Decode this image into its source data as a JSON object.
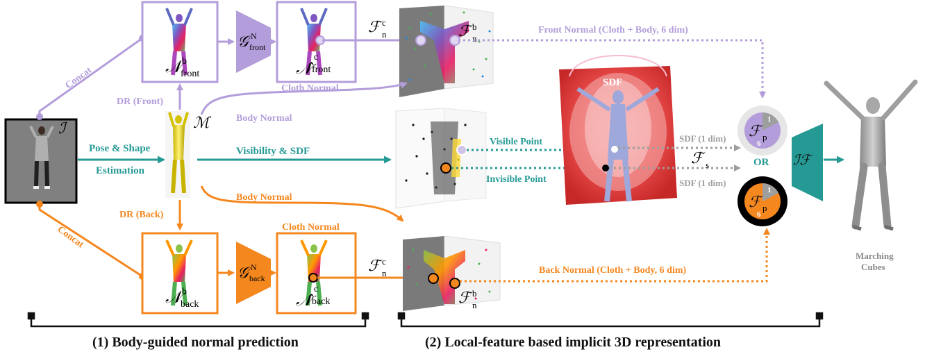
{
  "colors": {
    "purple": "#b39ddb",
    "purple_dark": "#9575cd",
    "orange": "#f5871f",
    "teal": "#259a95",
    "gray": "#9e9e9e",
    "black": "#111111"
  },
  "labels": {
    "concat_top": "Concat",
    "concat_bottom": "Concat",
    "dr_front": "DR (Front)",
    "dr_back": "DR (Back)",
    "pose_shape": "Pose & Shape",
    "estimation": "Estimation",
    "cloth_normal_top": "Cloth Normal",
    "cloth_normal_bottom": "Cloth Normal",
    "body_normal_top": "Body Normal",
    "body_normal_bottom": "Body Normal",
    "visibility_sdf": "Visibility & SDF",
    "visible_point": "Visible Point",
    "invisible_point": "Invisible Point",
    "front_normal": "Front Normal (Cloth + Body, 6 dim)",
    "back_normal": "Back Normal (Cloth + Body, 6 dim)",
    "sdf_title": "SDF",
    "sdf_1dim_top": "SDF (1 dim)",
    "sdf_1dim_bottom": "SDF (1 dim)",
    "or": "OR",
    "marching": "Marching",
    "cubes": "Cubes",
    "pie_one_top": "1",
    "pie_six_top": "6",
    "pie_one_bottom": "1",
    "pie_six_bottom": "6"
  },
  "math": {
    "I": "ℐ",
    "M": "ℳ",
    "N_front": "𝒩",
    "N_front_sup": "b",
    "N_front_sub": "front",
    "N_back": "𝒩",
    "N_back_sup": "b",
    "N_back_sub": "back",
    "G_front": "𝒢",
    "G_front_sup": "N",
    "G_front_sub": "front",
    "G_back": "𝒢",
    "G_back_sup": "N",
    "G_back_sub": "back",
    "Nhat_front": "𝒩̂",
    "Nhat_front_sup": "c",
    "Nhat_front_sub": "front",
    "Nhat_back": "𝒩̂",
    "Nhat_back_sup": "c",
    "Nhat_back_sub": "back",
    "Fn_c_top": "ℱ",
    "Fn_c_top_sub": "n",
    "Fn_c_top_sup": "c",
    "Fn_b_top": "ℱ",
    "Fn_b_top_sub": "n",
    "Fn_b_top_sup": "b",
    "Fn_c_bot": "ℱ",
    "Fn_c_bot_sub": "n",
    "Fn_c_bot_sup": "c",
    "Fn_b_bot": "ℱ",
    "Fn_b_bot_sub": "n",
    "Fn_b_bot_sup": "b",
    "Fs": "ℱ",
    "Fs_sub": "s",
    "Fp_top": "ℱ",
    "Fp_top_sub": "p",
    "Fp_bot": "ℱ",
    "Fp_bot_sub": "p",
    "IF": "ℐℱ"
  },
  "captions": {
    "left": "(1) Body-guided normal prediction",
    "right": "(2) Local-feature based implicit 3D representation"
  }
}
